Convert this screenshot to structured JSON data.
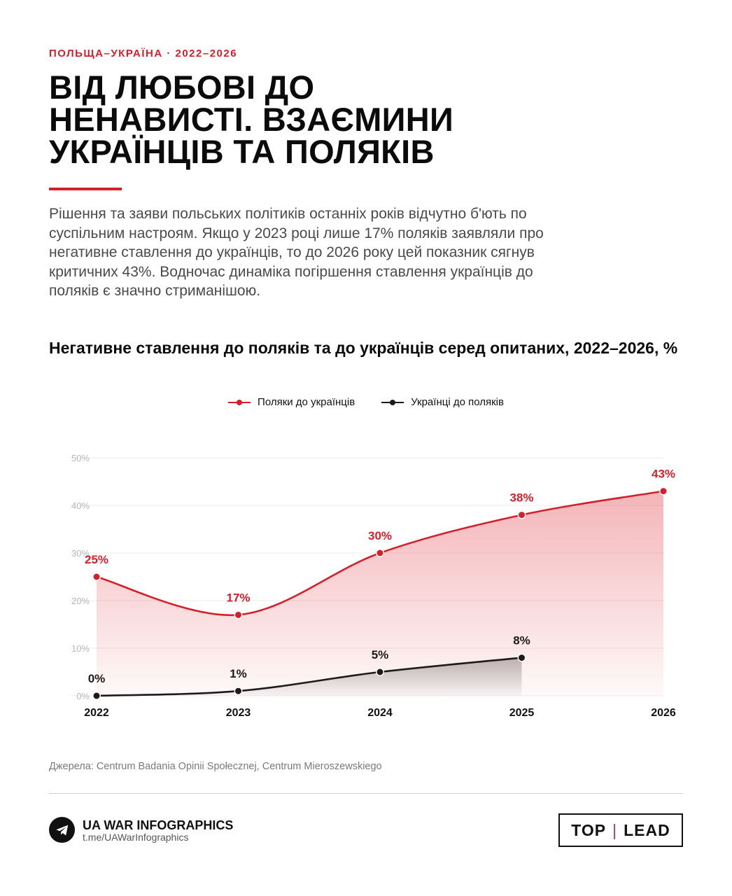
{
  "header": {
    "kicker": "ПОЛЬЩА–УКРАЇНА · 2022–2026",
    "title_lines": [
      "ВІД ЛЮБОВІ ДО",
      "НЕНАВИСТІ. ВЗАЄМИНИ",
      "УКРАЇНЦІВ ТА ПОЛЯКІВ"
    ],
    "lead": "Рішення та заяви польських політиків останніх років відчутно б'ють по суспільним настроям. Якщо у 2023 році лише 17% поляків заявляли про негативне ставлення до українців, то до 2026 року цей показник сягнув критичних 43%. Водночас динаміка погіршення ставлення українців до поляків є значно стриманішою."
  },
  "chart_data": {
    "type": "area",
    "title": "Негативне ставлення до поляків та до українців серед опитаних, 2022–2026, %",
    "x": [
      "2022",
      "2023",
      "2024",
      "2025",
      "2026"
    ],
    "ylim": [
      0,
      50
    ],
    "yticks": [
      "0%",
      "10%",
      "20%",
      "30%",
      "40%",
      "50%"
    ],
    "grid": true,
    "legend_position": "top-center",
    "series": [
      {
        "name": "Поляки до українців",
        "color": "#d4202a",
        "values": [
          25,
          17,
          30,
          38,
          43
        ],
        "labels": [
          "25%",
          "17%",
          "30%",
          "38%",
          "43%"
        ]
      },
      {
        "name": "Українці до поляків",
        "color": "#1f1a1a",
        "values": [
          0,
          1,
          5,
          8,
          null
        ],
        "labels": [
          "0%",
          "1%",
          "5%",
          "8%",
          ""
        ]
      }
    ]
  },
  "footer": {
    "source": "Джерела: Centrum Badania Opinii Społecznej, Centrum Mieroszewskiego",
    "brand_name": "UA WAR INFOGRAPHICS",
    "brand_link": "t.me/UAWarInfographics",
    "partner_left": "TOP",
    "partner_right": "LEAD",
    "brand_icon": "telegram-paper-plane-icon"
  }
}
